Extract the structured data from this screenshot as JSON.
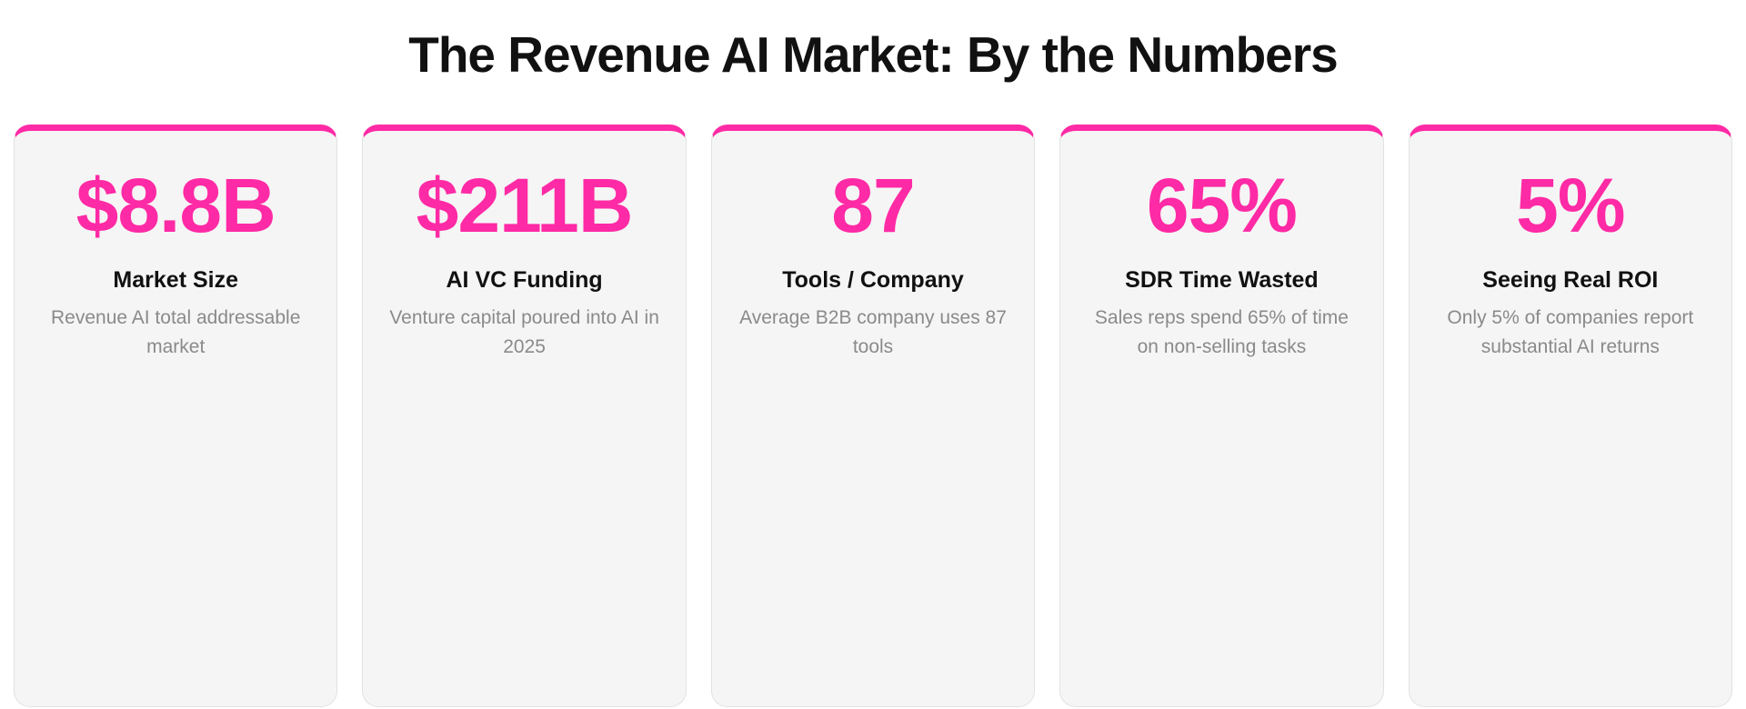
{
  "title": "The Revenue AI Market: By the Numbers",
  "colors": {
    "accent": "#ff2aa5",
    "card_background": "#f5f5f5",
    "title_text": "#111111",
    "description_text": "#8a8a8a"
  },
  "stats": [
    {
      "value": "$8.8B",
      "label": "Market Size",
      "description": "Revenue AI total addressable market"
    },
    {
      "value": "$211B",
      "label": "AI VC Funding",
      "description": "Venture capital poured into AI in 2025"
    },
    {
      "value": "87",
      "label": "Tools / Company",
      "description": "Average B2B company uses 87 tools"
    },
    {
      "value": "65%",
      "label": "SDR Time Wasted",
      "description": "Sales reps spend 65% of time on non-selling tasks"
    },
    {
      "value": "5%",
      "label": "Seeing Real ROI",
      "description": "Only 5% of companies report substantial AI returns"
    }
  ]
}
